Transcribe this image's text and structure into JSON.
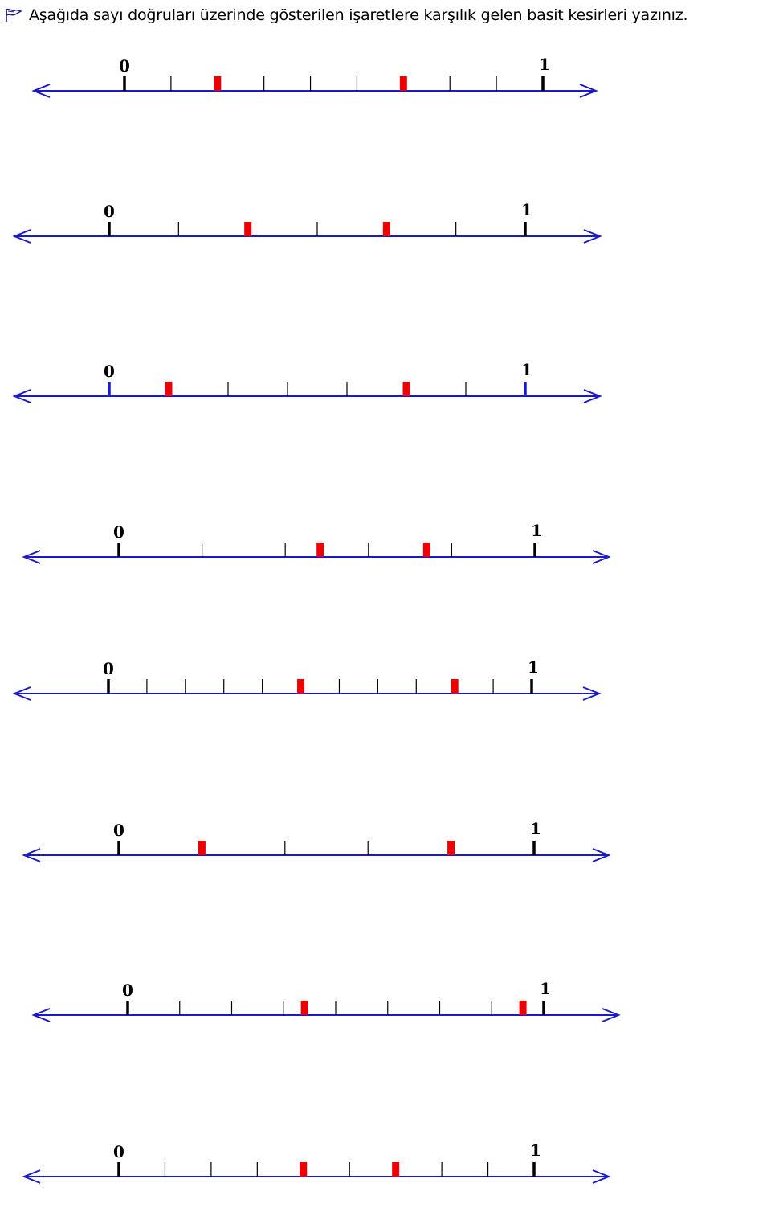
{
  "instruction": "Aşağıda sayı doğruları üzerinde gösterilen işaretlere karşılık gelen basit kesirleri yazınız.",
  "icons": {
    "header": "flag-icon"
  },
  "colors": {
    "line": "#1a1acc",
    "tick": "#000000",
    "mark": "#ee0000",
    "blue_tick": "#1a1acc"
  },
  "number_lines": [
    {
      "start_label": "0",
      "end_label": "1",
      "divisions": 9,
      "marked": [
        2,
        6
      ],
      "endpoint_color": "black"
    },
    {
      "start_label": "0",
      "end_label": "1",
      "divisions": 6,
      "marked": [
        2,
        4
      ],
      "endpoint_color": "black"
    },
    {
      "start_label": "0",
      "end_label": "1",
      "divisions": 7,
      "marked": [
        1,
        5
      ],
      "endpoint_color": "blue"
    },
    {
      "start_label": "0",
      "end_label": "1",
      "divisions": 5,
      "marked": [
        2.42,
        3.7
      ],
      "endpoint_color": "black"
    },
    {
      "start_label": "0",
      "end_label": "1",
      "divisions": 11,
      "marked": [
        5,
        9
      ],
      "endpoint_color": "black"
    },
    {
      "start_label": "0",
      "end_label": "1",
      "divisions": 5,
      "marked": [
        1,
        4
      ],
      "endpoint_color": "black"
    },
    {
      "start_label": "0",
      "end_label": "1",
      "divisions": 8,
      "marked": [
        3.4,
        7.6
      ],
      "endpoint_color": "black"
    },
    {
      "start_label": "0",
      "end_label": "1",
      "divisions": 9,
      "marked": [
        4,
        6
      ],
      "endpoint_color": "black"
    }
  ]
}
